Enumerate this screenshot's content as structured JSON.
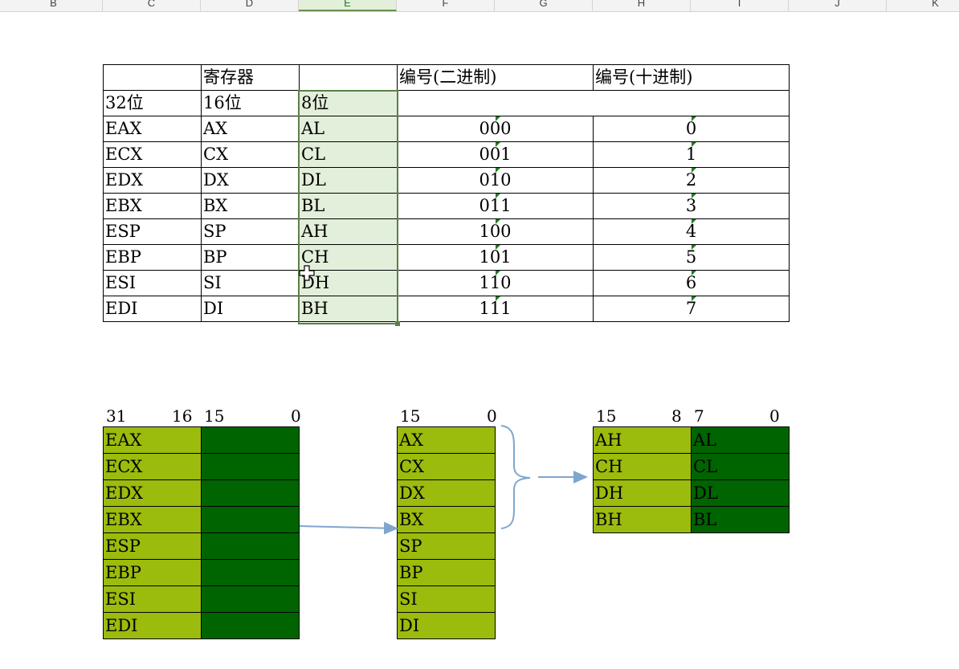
{
  "columns": {
    "headers": [
      "B",
      "C",
      "D",
      "E",
      "F",
      "G",
      "H",
      "I",
      "J",
      "K"
    ],
    "selected": "E"
  },
  "table": {
    "header_row": [
      "",
      "寄存器",
      "",
      "编号(二进制)",
      "编号(十进制)"
    ],
    "size_row": [
      "32位",
      "16位",
      "8位"
    ],
    "rows": [
      {
        "r32": "EAX",
        "r16": "AX",
        "r8": "AL",
        "bin": "000",
        "dec": "0"
      },
      {
        "r32": "ECX",
        "r16": "CX",
        "r8": "CL",
        "bin": "001",
        "dec": "1"
      },
      {
        "r32": "EDX",
        "r16": "DX",
        "r8": "DL",
        "bin": "010",
        "dec": "2"
      },
      {
        "r32": "EBX",
        "r16": "BX",
        "r8": "BL",
        "bin": "011",
        "dec": "3"
      },
      {
        "r32": "ESP",
        "r16": "SP",
        "r8": "AH",
        "bin": "100",
        "dec": "4"
      },
      {
        "r32": "EBP",
        "r16": "BP",
        "r8": "CH",
        "bin": "101",
        "dec": "5"
      },
      {
        "r32": "ESI",
        "r16": "SI",
        "r8": "DH",
        "bin": "110",
        "dec": "6"
      },
      {
        "r32": "EDI",
        "r16": "DI",
        "r8": "BH",
        "bin": "111",
        "dec": "7"
      }
    ]
  },
  "diagram32": {
    "bits": [
      "31",
      "16",
      "15",
      "0"
    ],
    "regs": [
      "EAX",
      "ECX",
      "EDX",
      "EBX",
      "ESP",
      "EBP",
      "ESI",
      "EDI"
    ]
  },
  "diagram16": {
    "bits": [
      "15",
      "0"
    ],
    "regs": [
      "AX",
      "CX",
      "DX",
      "BX",
      "SP",
      "BP",
      "SI",
      "DI"
    ]
  },
  "diagram8": {
    "bits": [
      "15",
      "8",
      "7",
      "0"
    ],
    "high": [
      "AH",
      "CH",
      "DH",
      "BH"
    ],
    "low": [
      "AL",
      "CL",
      "DL",
      "BL"
    ]
  },
  "colors": {
    "light_green": "#9bbb0d",
    "dark_green": "#006400",
    "selection": "#e2efda",
    "arrow": "#7ea6cf"
  }
}
